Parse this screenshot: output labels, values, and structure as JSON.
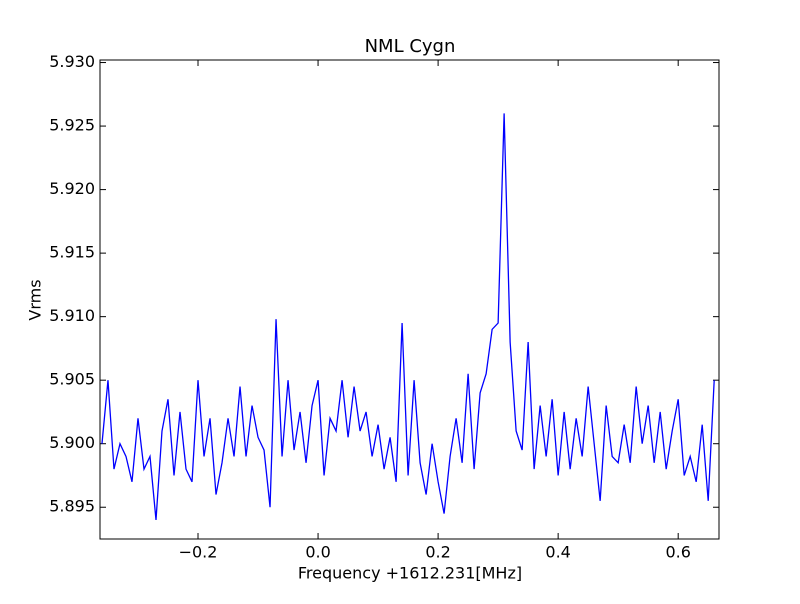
{
  "chart_data": {
    "type": "line",
    "title": "NML Cygn",
    "x_label": "Frequency +1612.231[MHz]",
    "y_label": "Vrms",
    "x": [
      -0.36,
      -0.35,
      -0.34,
      -0.33,
      -0.32,
      -0.31,
      -0.3,
      -0.29,
      -0.28,
      -0.27,
      -0.26,
      -0.25,
      -0.24,
      -0.23,
      -0.22,
      -0.21,
      -0.2,
      -0.19,
      -0.18,
      -0.17,
      -0.16,
      -0.15,
      -0.14,
      -0.13,
      -0.12,
      -0.11,
      -0.1,
      -0.09,
      -0.08,
      -0.07,
      -0.06,
      -0.05,
      -0.04,
      -0.03,
      -0.02,
      -0.01,
      0,
      0.01,
      0.02,
      0.03,
      0.04,
      0.05,
      0.06,
      0.07,
      0.08,
      0.09,
      0.1,
      0.11,
      0.12,
      0.13,
      0.14,
      0.15,
      0.16,
      0.17,
      0.18,
      0.19,
      0.2,
      0.21,
      0.22,
      0.23,
      0.24,
      0.25,
      0.26,
      0.27,
      0.28,
      0.29,
      0.3,
      0.31,
      0.32,
      0.33,
      0.34,
      0.35,
      0.36,
      0.37,
      0.38,
      0.39,
      0.4,
      0.41,
      0.42,
      0.43,
      0.44,
      0.45,
      0.46,
      0.47,
      0.48,
      0.49,
      0.5,
      0.51,
      0.52,
      0.53,
      0.54,
      0.55,
      0.56,
      0.57,
      0.58,
      0.59,
      0.6,
      0.61,
      0.62,
      0.63,
      0.64,
      0.65,
      0.66
    ],
    "series": [
      {
        "color": "#0000ff",
        "values": [
          5.9,
          5.905,
          5.898,
          5.9,
          5.899,
          5.897,
          5.902,
          5.898,
          5.899,
          5.894,
          5.901,
          5.9035,
          5.8975,
          5.9025,
          5.898,
          5.897,
          5.905,
          5.899,
          5.902,
          5.896,
          5.8985,
          5.902,
          5.899,
          5.9045,
          5.899,
          5.903,
          5.9005,
          5.8995,
          5.895,
          5.9098,
          5.899,
          5.905,
          5.8995,
          5.9025,
          5.8985,
          5.903,
          5.905,
          5.8975,
          5.902,
          5.901,
          5.905,
          5.9005,
          5.9045,
          5.901,
          5.9025,
          5.899,
          5.9015,
          5.898,
          5.9005,
          5.897,
          5.9095,
          5.8975,
          5.905,
          5.8985,
          5.896,
          5.9,
          5.897,
          5.8945,
          5.899,
          5.902,
          5.8985,
          5.9055,
          5.898,
          5.904,
          5.9055,
          5.909,
          5.9095,
          5.926,
          5.908,
          5.901,
          5.8995,
          5.908,
          5.898,
          5.903,
          5.899,
          5.9035,
          5.8975,
          5.9025,
          5.898,
          5.902,
          5.899,
          5.9045,
          5.9,
          5.8955,
          5.903,
          5.899,
          5.8985,
          5.9015,
          5.8985,
          5.9045,
          5.9,
          5.903,
          5.8985,
          5.9025,
          5.898,
          5.901,
          5.9035,
          5.8975,
          5.899,
          5.897,
          5.9015,
          5.8955,
          5.905
        ]
      }
    ],
    "xlim": [
      -0.3633,
      0.668
    ],
    "ylim": [
      5.8925,
      5.9302
    ],
    "xticks": [
      {
        "value": -0.2,
        "label": "−0.2"
      },
      {
        "value": 0,
        "label": "0.0"
      },
      0.2,
      0.4,
      0.6
    ],
    "yticks": [
      5.895,
      {
        "value": 5.9,
        "label": "5.900"
      },
      5.905,
      {
        "value": 5.91,
        "label": "5.910"
      },
      5.915,
      {
        "value": 5.92,
        "label": "5.920"
      },
      5.925,
      {
        "value": 5.93,
        "label": "5.930"
      }
    ]
  }
}
